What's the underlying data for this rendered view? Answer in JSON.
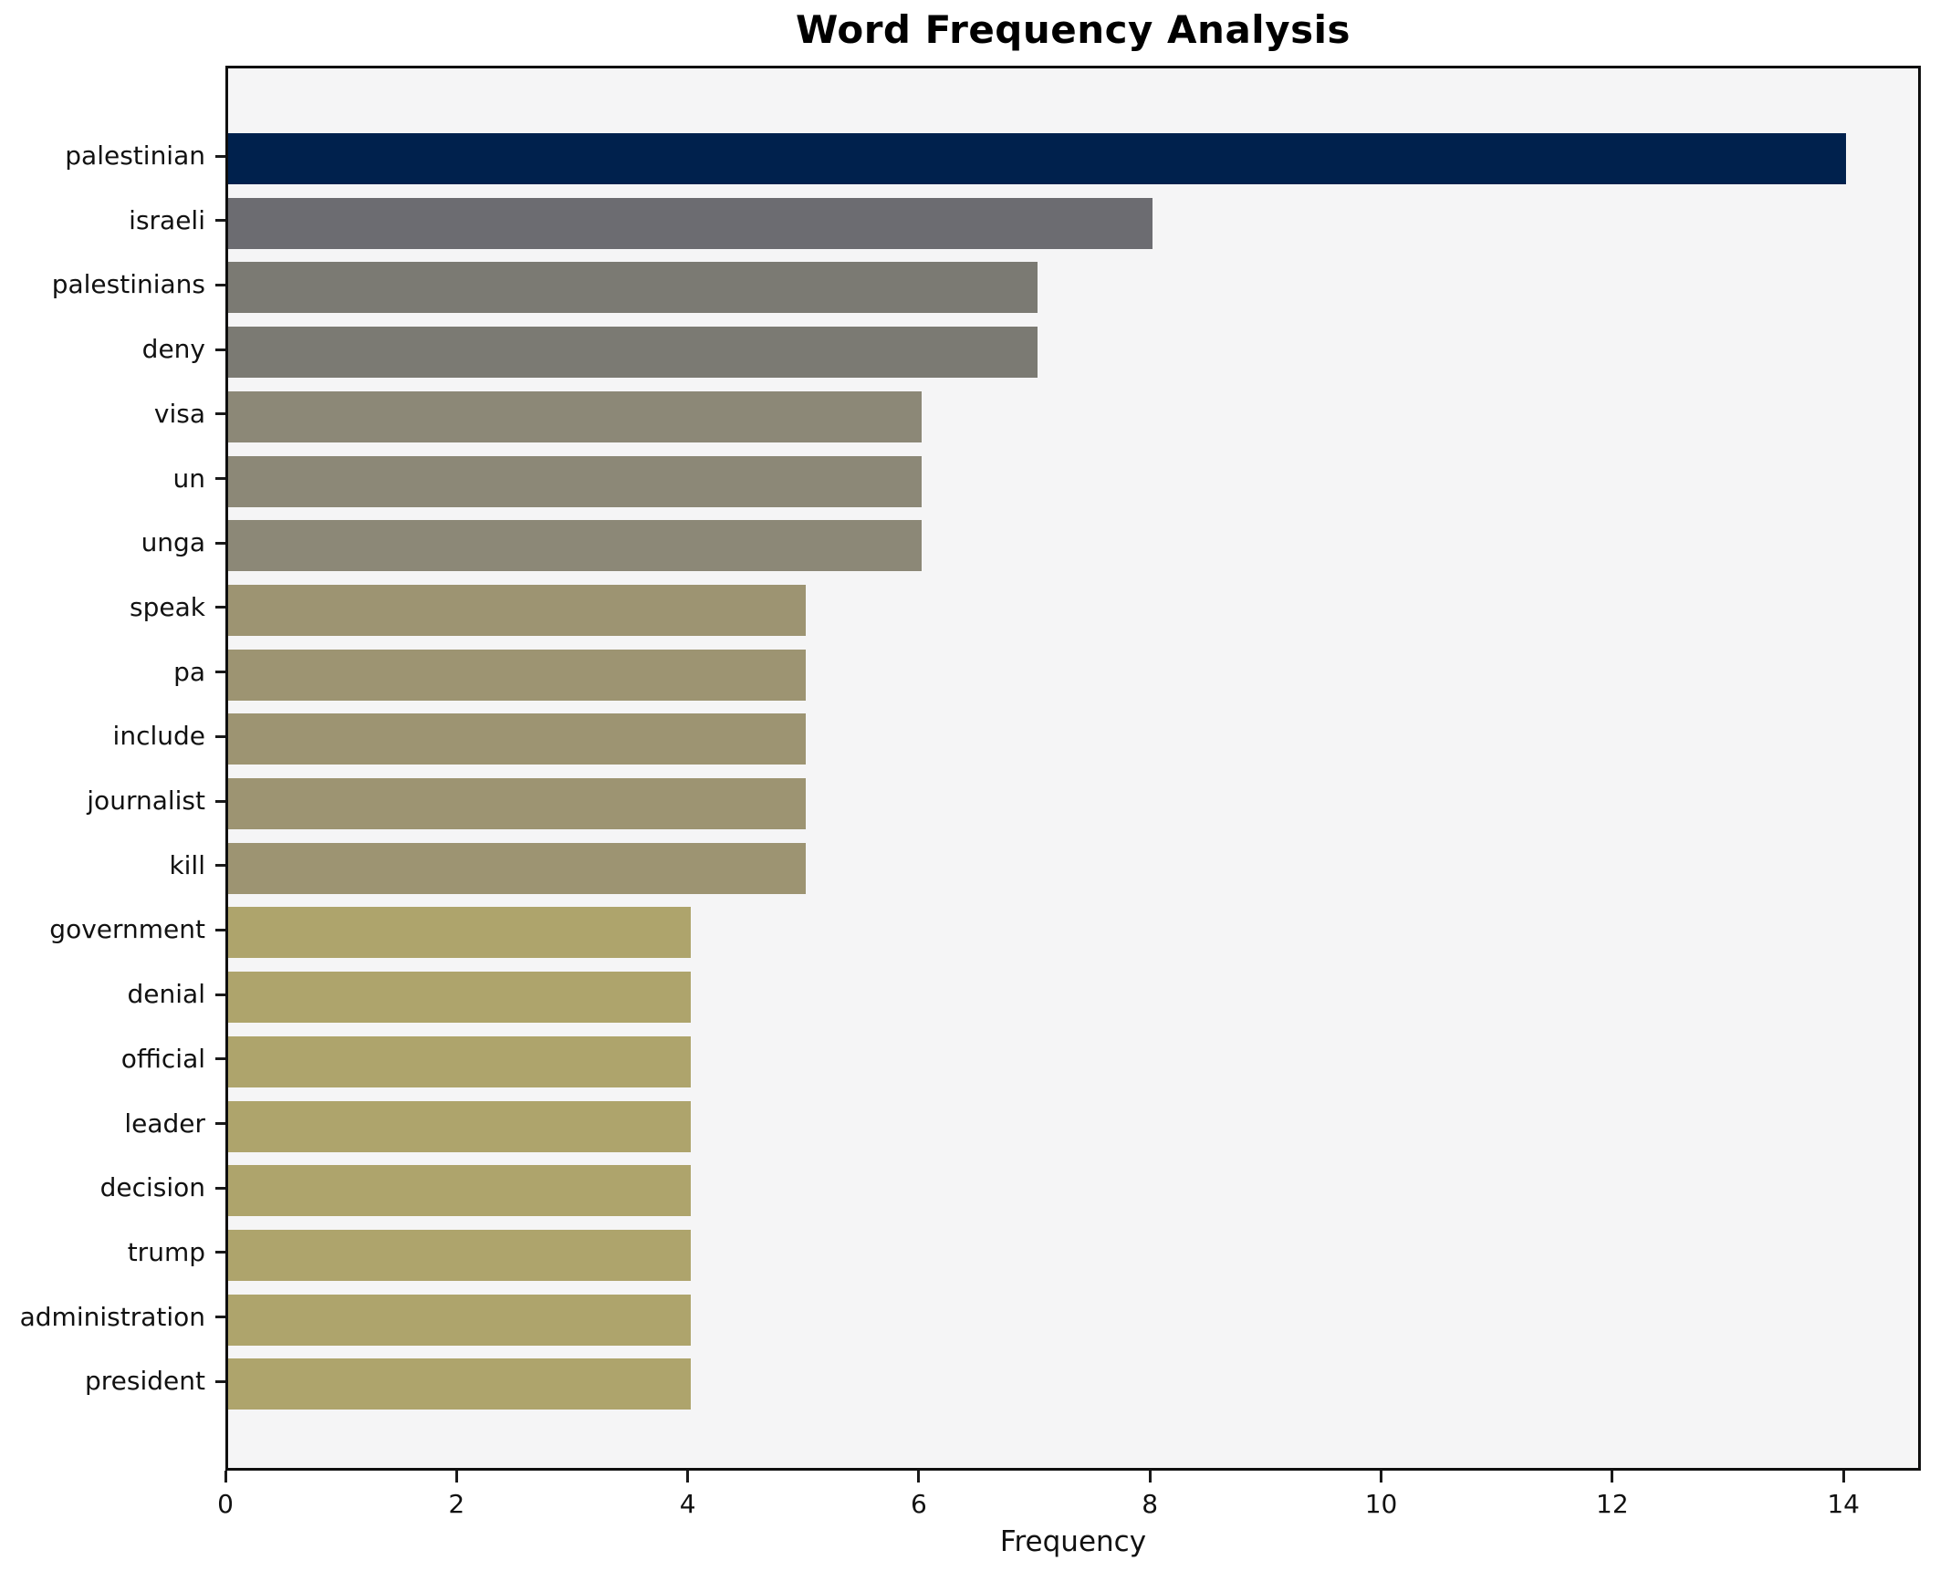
{
  "figure": {
    "background": "#ffffff"
  },
  "chart_data": {
    "type": "bar",
    "orientation": "horizontal",
    "title": "Word Frequency Analysis",
    "xlabel": "Frequency",
    "ylabel": "",
    "categories": [
      "palestinian",
      "israeli",
      "palestinians",
      "deny",
      "visa",
      "un",
      "unga",
      "speak",
      "pa",
      "include",
      "journalist",
      "kill",
      "government",
      "denial",
      "official",
      "leader",
      "decision",
      "trump",
      "administration",
      "president"
    ],
    "values": [
      14,
      8,
      7,
      7,
      6,
      6,
      6,
      5,
      5,
      5,
      5,
      5,
      4,
      4,
      4,
      4,
      4,
      4,
      4,
      4
    ],
    "bar_colors": [
      "#00214d",
      "#6c6c71",
      "#7b7a73",
      "#7b7a73",
      "#8c8877",
      "#8c8877",
      "#8c8877",
      "#9d9472",
      "#9d9472",
      "#9d9472",
      "#9d9472",
      "#9d9472",
      "#aea46c",
      "#aea46c",
      "#aea46c",
      "#aea46c",
      "#aea46c",
      "#aea46c",
      "#aea46c",
      "#aea46c"
    ],
    "xticks": [
      0,
      2,
      4,
      6,
      8,
      10,
      12,
      14
    ],
    "xlim": [
      0,
      14.67
    ],
    "grid": false,
    "legend_position": "none",
    "plot_background": "#f5f5f6",
    "spine_color": "#0f0f0f",
    "tick_color": "#1a1a1a",
    "text_color": "#111111"
  }
}
